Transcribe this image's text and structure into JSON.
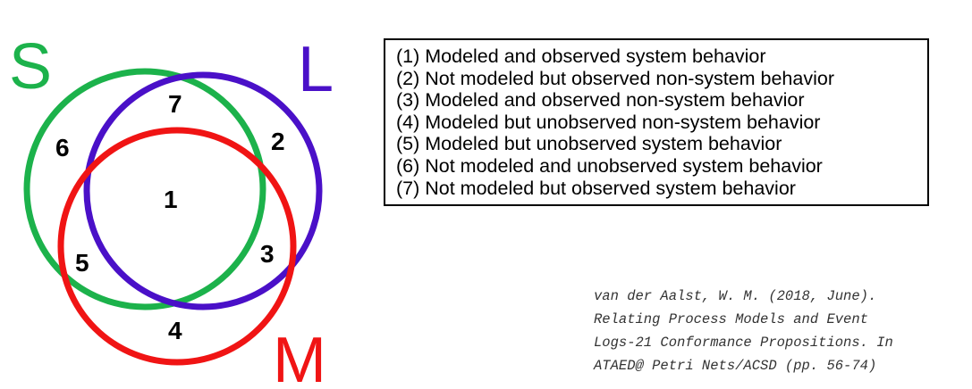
{
  "sets": [
    {
      "label": "S",
      "color": "#1cb24b"
    },
    {
      "label": "L",
      "color": "#4a10c8"
    },
    {
      "label": "M",
      "color": "#f01414"
    }
  ],
  "regions": [
    "1",
    "2",
    "3",
    "4",
    "5",
    "6",
    "7"
  ],
  "legend": [
    "(1) Modeled and observed system behavior",
    "(2) Not modeled but observed non-system behavior",
    "(3) Modeled and observed non-system behavior",
    "(4) Modeled but unobserved non-system behavior",
    "(5) Modeled but unobserved system behavior",
    "(6) Not modeled and unobserved system behavior",
    "(7) Not modeled but observed system behavior"
  ],
  "citation": [
    "van der Aalst, W. M. (2018, June).",
    "Relating Process Models and Event",
    "Logs-21 Conformance Propositions. In",
    "ATAED@ Petri Nets/ACSD (pp. 56-74)"
  ]
}
